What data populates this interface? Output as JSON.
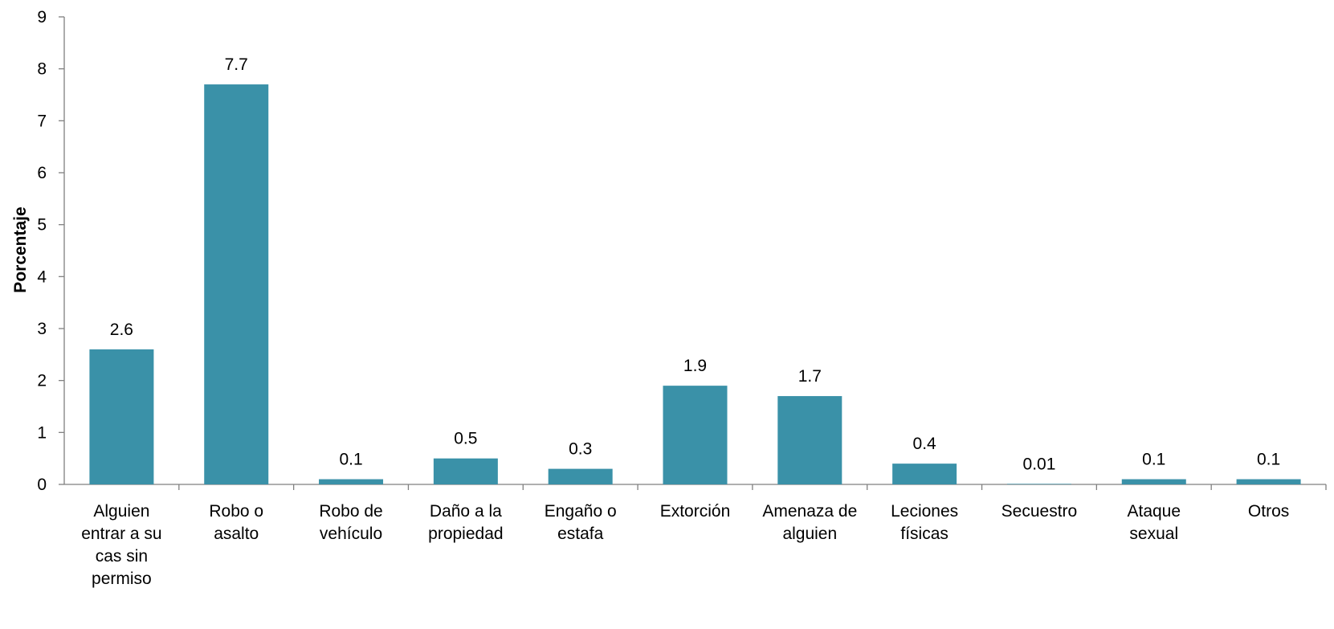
{
  "chart_data": {
    "type": "bar",
    "title": "",
    "xlabel": "",
    "ylabel": "Porcentaje",
    "ylim": [
      0,
      9
    ],
    "yticks": [
      "0",
      "1",
      "2",
      "3",
      "4",
      "5",
      "6",
      "7",
      "8",
      "9"
    ],
    "grid": false,
    "legend": "none",
    "bar_color": "#3A91A8",
    "categories": [
      [
        "Alguien",
        "entrar a su",
        "cas sin",
        "permiso"
      ],
      [
        "Robo o",
        "asalto"
      ],
      [
        "Robo de",
        "vehículo"
      ],
      [
        "Daño a la",
        "propiedad"
      ],
      [
        "Engaño o",
        "estafa"
      ],
      [
        "Extorción"
      ],
      [
        "Amenaza de",
        "alguien"
      ],
      [
        "Leciones",
        "físicas"
      ],
      [
        "Secuestro"
      ],
      [
        "Ataque",
        "sexual"
      ],
      [
        "Otros"
      ]
    ],
    "values": [
      2.6,
      7.7,
      0.1,
      0.5,
      0.3,
      1.9,
      1.7,
      0.4,
      0.01,
      0.1,
      0.1
    ],
    "data_labels": [
      "2.6",
      "7.7",
      "0.1",
      "0.5",
      "0.3",
      "1.9",
      "1.7",
      "0.4",
      "0.01",
      "0.1",
      "0.1"
    ]
  }
}
